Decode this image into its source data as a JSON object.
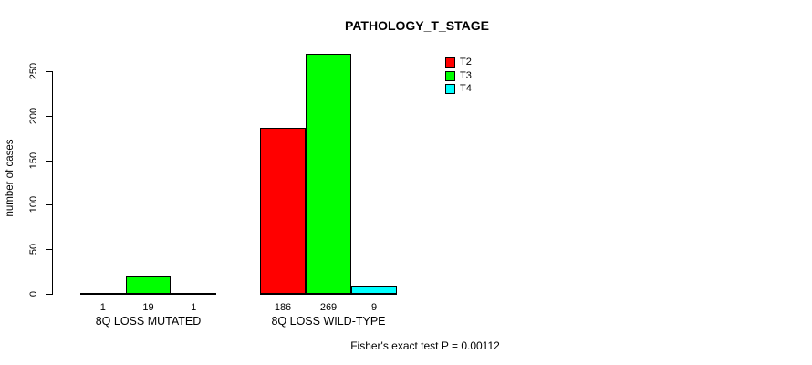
{
  "chart_data": {
    "type": "bar",
    "title": "PATHOLOGY_T_STAGE",
    "ylabel": "number of cases",
    "xlabel": "",
    "categories": [
      "8Q LOSS MUTATED",
      "8Q LOSS WILD-TYPE"
    ],
    "series": [
      {
        "name": "T2",
        "color": "#ff0000",
        "values": [
          1,
          186
        ]
      },
      {
        "name": "T3",
        "color": "#00ff00",
        "values": [
          19,
          269
        ]
      },
      {
        "name": "T4",
        "color": "#00ffff",
        "values": [
          1,
          9
        ]
      }
    ],
    "bar_value_labels": [
      [
        "1",
        "19",
        "1"
      ],
      [
        "186",
        "269",
        "9"
      ]
    ],
    "ylim": [
      0,
      250
    ],
    "yticks": [
      0,
      50,
      100,
      150,
      200,
      250
    ],
    "grid": false,
    "legend_position": "top-right-inside",
    "annotation": "Fisher's exact test P = 0.00112"
  },
  "colors": {
    "background": "#ffffff",
    "axis": "#000000",
    "text": "#000000"
  }
}
